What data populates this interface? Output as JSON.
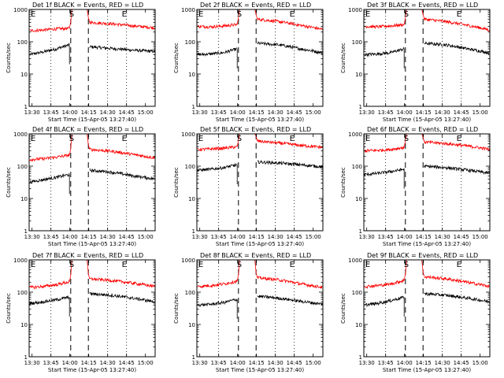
{
  "chart_data": [
    {
      "type": "line",
      "title": "Det 1f BLACK = Events, RED = LLD",
      "xlabel": "Start Time (15-Apr-05 13:27:40)",
      "ylabel": "Counts/sec",
      "ylog": true,
      "ylim": [
        1,
        1000
      ],
      "xticks": [
        "13:30",
        "13:45",
        "14:00",
        "14:15",
        "14:30",
        "14:45",
        "15:00"
      ],
      "yticks": [
        "1",
        "10",
        "100",
        "1000"
      ],
      "markers": [
        "E",
        "S",
        "E"
      ],
      "series": [
        {
          "color": "#000000",
          "pre": [
            40,
            48,
            60,
            80
          ],
          "post": [
            70,
            62,
            55,
            50
          ]
        },
        {
          "color": "#ff0000",
          "pre": [
            220,
            230,
            250,
            260
          ],
          "post": [
            400,
            360,
            310,
            270
          ]
        }
      ]
    },
    {
      "type": "line",
      "title": "Det 2f BLACK = Events, RED = LLD",
      "xlabel": "Start Time (15-Apr-05 13:27:40)",
      "ylabel": "Counts/sec",
      "ylog": true,
      "ylim": [
        1,
        1000
      ],
      "xticks": [
        "13:30",
        "13:45",
        "14:00",
        "14:15",
        "14:30",
        "14:45",
        "15:00"
      ],
      "yticks": [
        "1",
        "10",
        "100",
        "1000"
      ],
      "markers": [
        "E",
        "S",
        "E"
      ],
      "series": [
        {
          "color": "#000000",
          "pre": [
            40,
            42,
            46,
            60
          ],
          "post": [
            90,
            80,
            60,
            45
          ]
        },
        {
          "color": "#ff0000",
          "pre": [
            300,
            290,
            310,
            340
          ],
          "post": [
            500,
            420,
            320,
            240
          ]
        }
      ]
    },
    {
      "type": "line",
      "title": "Det 3f BLACK = Events, RED = LLD",
      "xlabel": "Start Time (15-Apr-05 13:27:40)",
      "ylabel": "Counts/sec",
      "ylog": true,
      "ylim": [
        1,
        1000
      ],
      "xticks": [
        "13:30",
        "13:45",
        "14:00",
        "14:15",
        "14:30",
        "14:45",
        "15:00"
      ],
      "yticks": [
        "1",
        "10",
        "100",
        "1000"
      ],
      "markers": [
        "E",
        "S",
        "E"
      ],
      "series": [
        {
          "color": "#000000",
          "pre": [
            40,
            42,
            46,
            60
          ],
          "post": [
            90,
            80,
            60,
            45
          ]
        },
        {
          "color": "#ff0000",
          "pre": [
            300,
            290,
            310,
            340
          ],
          "post": [
            500,
            420,
            320,
            230
          ]
        }
      ]
    },
    {
      "type": "line",
      "title": "Det 4f BLACK = Events, RED = LLD",
      "xlabel": "Start Time (15-Apr-05 13:27:40)",
      "ylabel": "Counts/sec",
      "ylog": true,
      "ylim": [
        1,
        1000
      ],
      "xticks": [
        "13:30",
        "13:45",
        "14:00",
        "14:15",
        "14:30",
        "14:45",
        "15:00"
      ],
      "yticks": [
        "1",
        "10",
        "100",
        "1000"
      ],
      "markers": [
        "E",
        "S",
        "E"
      ],
      "series": [
        {
          "color": "#000000",
          "pre": [
            32,
            38,
            45,
            55
          ],
          "post": [
            75,
            65,
            50,
            40
          ]
        },
        {
          "color": "#ff0000",
          "pre": [
            160,
            170,
            190,
            220
          ],
          "post": [
            330,
            290,
            230,
            180
          ]
        }
      ]
    },
    {
      "type": "line",
      "title": "Det 5f BLACK = Events, RED = LLD",
      "xlabel": "Start Time (15-Apr-05 13:27:40)",
      "ylabel": "Counts/sec",
      "ylog": true,
      "ylim": [
        1,
        1000
      ],
      "xticks": [
        "13:30",
        "13:45",
        "14:00",
        "14:15",
        "14:30",
        "14:45",
        "15:00"
      ],
      "yticks": [
        "1",
        "10",
        "100",
        "1000"
      ],
      "markers": [
        "E",
        "S",
        "E"
      ],
      "series": [
        {
          "color": "#000000",
          "pre": [
            75,
            80,
            90,
            110
          ],
          "post": [
            135,
            125,
            110,
            95
          ]
        },
        {
          "color": "#ff0000",
          "pre": [
            330,
            340,
            360,
            400
          ],
          "post": [
            600,
            520,
            440,
            380
          ]
        }
      ]
    },
    {
      "type": "line",
      "title": "Det 6f BLACK = Events, RED = LLD",
      "xlabel": "Start Time (15-Apr-05 13:27:40)",
      "ylabel": "Counts/sec",
      "ylog": true,
      "ylim": [
        1,
        1000
      ],
      "xticks": [
        "13:30",
        "13:45",
        "14:00",
        "14:15",
        "14:30",
        "14:45",
        "15:00"
      ],
      "yticks": [
        "1",
        "10",
        "100",
        "1000"
      ],
      "markers": [
        "E",
        "S",
        "E"
      ],
      "series": [
        {
          "color": "#000000",
          "pre": [
            55,
            60,
            68,
            80
          ],
          "post": [
            100,
            90,
            75,
            60
          ]
        },
        {
          "color": "#ff0000",
          "pre": [
            300,
            310,
            330,
            380
          ],
          "post": [
            560,
            500,
            420,
            330
          ]
        }
      ]
    },
    {
      "type": "line",
      "title": "Det 7f BLACK = Events, RED = LLD",
      "xlabel": "Start Time (15-Apr-05 13:27:40)",
      "ylabel": "Counts/sec",
      "ylog": true,
      "ylim": [
        1,
        1000
      ],
      "xticks": [
        "13:30",
        "13:45",
        "14:00",
        "14:15",
        "14:30",
        "14:45",
        "15:00"
      ],
      "yticks": [
        "1",
        "10",
        "100",
        "1000"
      ],
      "markers": [
        "E",
        "S",
        "E"
      ],
      "series": [
        {
          "color": "#000000",
          "pre": [
            45,
            50,
            58,
            70
          ],
          "post": [
            90,
            80,
            65,
            50
          ]
        },
        {
          "color": "#ff0000",
          "pre": [
            140,
            150,
            170,
            210
          ],
          "post": [
            260,
            230,
            190,
            150
          ]
        }
      ]
    },
    {
      "type": "line",
      "title": "Det 8f BLACK = Events, RED = LLD",
      "xlabel": "Start Time (15-Apr-05 13:27:40)",
      "ylabel": "Counts/sec",
      "ylog": true,
      "ylim": [
        1,
        1000
      ],
      "xticks": [
        "13:30",
        "13:45",
        "14:00",
        "14:15",
        "14:30",
        "14:45",
        "15:00"
      ],
      "yticks": [
        "1",
        "10",
        "100",
        "1000"
      ],
      "markers": [
        "E",
        "S",
        "E"
      ],
      "series": [
        {
          "color": "#000000",
          "pre": [
            40,
            42,
            48,
            60
          ],
          "post": [
            75,
            65,
            52,
            42
          ]
        },
        {
          "color": "#ff0000",
          "pre": [
            150,
            160,
            180,
            220
          ],
          "post": [
            280,
            240,
            180,
            140
          ]
        }
      ]
    },
    {
      "type": "line",
      "title": "Det 9f BLACK = Events, RED = LLD",
      "xlabel": "Start Time (15-Apr-05 13:27:40)",
      "ylabel": "Counts/sec",
      "ylog": true,
      "ylim": [
        1,
        1000
      ],
      "xticks": [
        "13:30",
        "13:45",
        "14:00",
        "14:15",
        "14:30",
        "14:45",
        "15:00"
      ],
      "yticks": [
        "1",
        "10",
        "100",
        "1000"
      ],
      "markers": [
        "E",
        "S",
        "E"
      ],
      "series": [
        {
          "color": "#000000",
          "pre": [
            40,
            45,
            55,
            70
          ],
          "post": [
            90,
            80,
            65,
            50
          ]
        },
        {
          "color": "#ff0000",
          "pre": [
            150,
            160,
            180,
            230
          ],
          "post": [
            300,
            260,
            200,
            150
          ]
        }
      ]
    }
  ]
}
